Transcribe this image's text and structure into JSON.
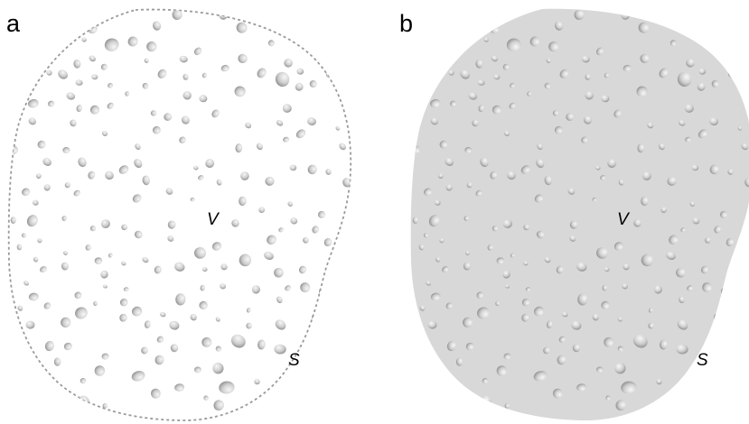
{
  "panels": [
    {
      "label": "a",
      "region": "dashed-outline",
      "fill": "#ffffff",
      "outline_color": "#9a9a9a",
      "volume_label": "V",
      "surface_label": "S"
    },
    {
      "label": "b",
      "region": "filled",
      "fill": "#d8d8d8",
      "outline_color": "none",
      "volume_label": "V",
      "surface_label": "S"
    }
  ],
  "particle_colors": {
    "light": "#f7f7f7",
    "mid": "#cfcfcf",
    "dark": "#8a8a8a"
  }
}
